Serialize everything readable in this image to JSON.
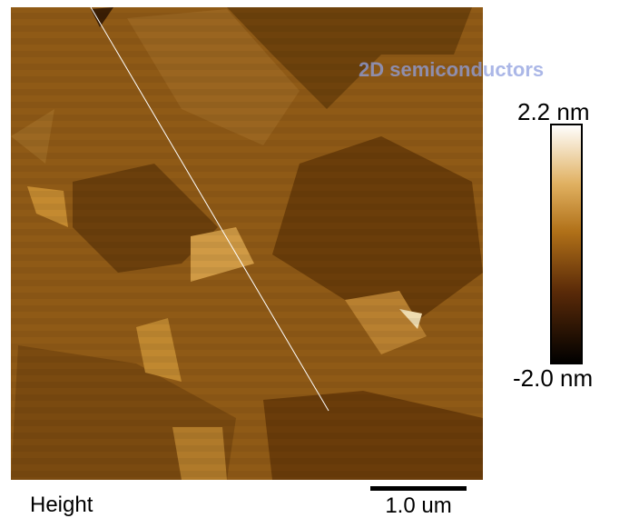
{
  "image": {
    "caption": "Height",
    "scale_bar": "1.0 um",
    "watermark": "2D semiconductors"
  },
  "colorbar": {
    "max_label": "2.2 nm",
    "min_label": "-2.0 nm"
  }
}
